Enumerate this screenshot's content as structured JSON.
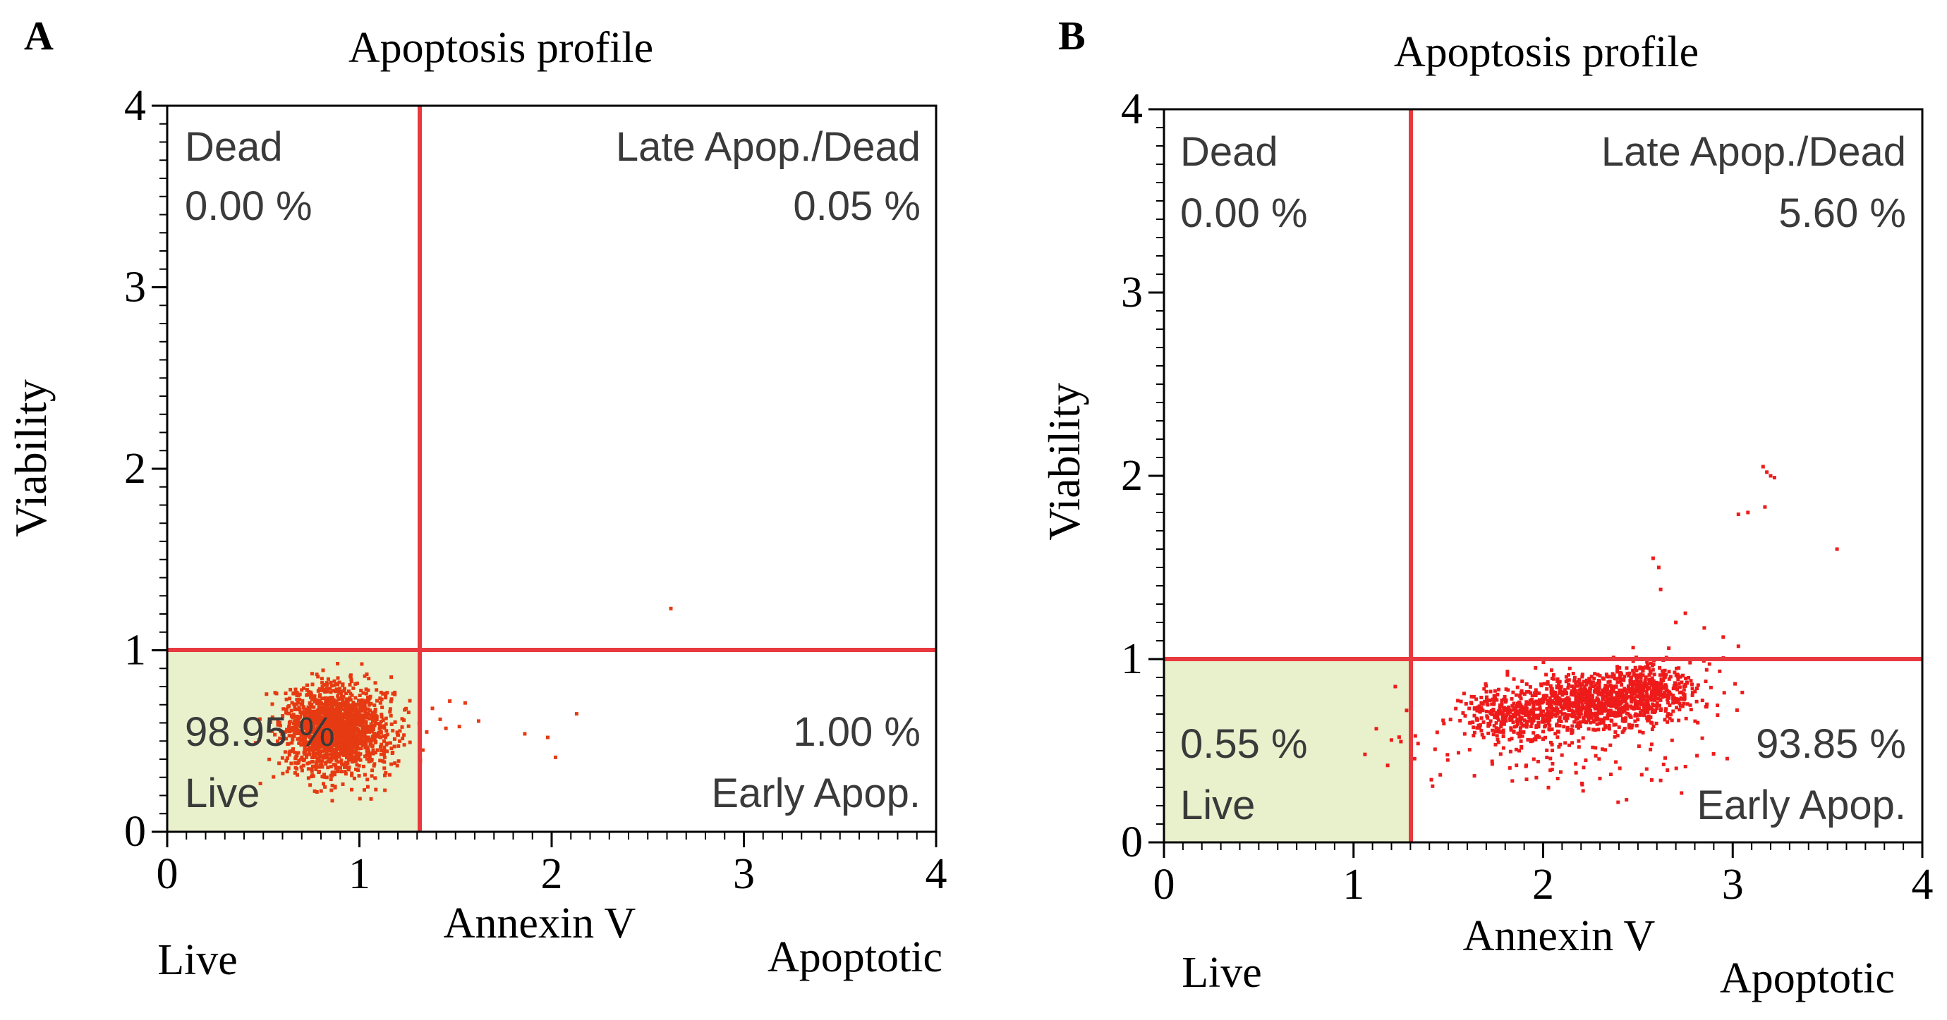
{
  "figure": {
    "panels": [
      "A",
      "B"
    ]
  },
  "colors": {
    "gate_line": "#e8393f",
    "dot_a": "#e63a12",
    "dot_b": "#ee1b1b",
    "live_fill": "#e9f0cc",
    "axis": "#000000",
    "quad_text": "#3a3a3a"
  },
  "chart_data": [
    {
      "type": "scatter",
      "panel_label": "A",
      "title": "Apoptosis profile",
      "xlabel": "Annexin V",
      "ylabel": "Viability",
      "xlim": [
        0,
        4
      ],
      "ylim": [
        0,
        4
      ],
      "x_ticks": [
        "0",
        "1",
        "2",
        "3",
        "4"
      ],
      "y_ticks": [
        "0",
        "1",
        "2",
        "3",
        "4"
      ],
      "x_end_labels": {
        "left": "Live",
        "right": "Apoptotic"
      },
      "gates": {
        "x": 1.3,
        "y": 1.0
      },
      "quadrants": {
        "dead": {
          "name": "Dead",
          "percent": "0.00 %"
        },
        "late": {
          "name": "Late Apop./Dead",
          "percent": "0.05 %"
        },
        "live": {
          "name": "Live",
          "percent": "98.95 %"
        },
        "early": {
          "name": "Early Apop.",
          "percent": "1.00 %"
        }
      },
      "clusters": [
        {
          "center": [
            0.88,
            0.56
          ],
          "spread": [
            0.14,
            0.12
          ],
          "count": 1700
        }
      ],
      "points": [
        [
          2.62,
          1.23
        ],
        [
          1.38,
          0.68
        ],
        [
          1.42,
          0.62
        ],
        [
          1.47,
          0.72
        ],
        [
          1.52,
          0.58
        ],
        [
          1.62,
          0.61
        ],
        [
          1.86,
          0.54
        ],
        [
          1.98,
          0.52
        ],
        [
          2.02,
          0.41
        ],
        [
          2.13,
          0.65
        ],
        [
          1.35,
          0.55
        ],
        [
          1.45,
          0.57
        ],
        [
          1.55,
          0.71
        ],
        [
          1.33,
          0.45
        ]
      ]
    },
    {
      "type": "scatter",
      "panel_label": "B",
      "title": "Apoptosis profile",
      "xlabel": "Annexin V",
      "ylabel": "Viability",
      "xlim": [
        0,
        4
      ],
      "ylim": [
        0,
        4
      ],
      "x_ticks": [
        "0",
        "1",
        "2",
        "3",
        "4"
      ],
      "y_ticks": [
        "0",
        "1",
        "2",
        "3",
        "4"
      ],
      "x_end_labels": {
        "left": "Live",
        "right": "Apoptotic"
      },
      "gates": {
        "x": 1.3,
        "y": 1.0
      },
      "quadrants": {
        "dead": {
          "name": "Dead",
          "percent": "0.00 %"
        },
        "late": {
          "name": "Late Apop./Dead",
          "percent": "5.60 %"
        },
        "live": {
          "name": "Live",
          "percent": "0.55 %"
        },
        "early": {
          "name": "Early Apop.",
          "percent": "93.85 %"
        }
      },
      "clusters": [
        {
          "center": [
            1.85,
            0.7
          ],
          "spread": [
            0.13,
            0.07
          ],
          "count": 320
        },
        {
          "center": [
            2.3,
            0.76
          ],
          "spread": [
            0.2,
            0.07
          ],
          "count": 780
        },
        {
          "center": [
            2.55,
            0.86
          ],
          "spread": [
            0.16,
            0.07
          ],
          "count": 320
        },
        {
          "center": [
            2.05,
            0.52
          ],
          "spread": [
            0.38,
            0.14
          ],
          "count": 150
        }
      ],
      "points": [
        [
          3.16,
          2.05
        ],
        [
          3.18,
          2.02
        ],
        [
          3.2,
          2.0
        ],
        [
          3.22,
          1.99
        ],
        [
          3.17,
          1.83
        ],
        [
          3.03,
          1.79
        ],
        [
          3.08,
          1.8
        ],
        [
          3.55,
          1.6
        ],
        [
          2.58,
          1.55
        ],
        [
          2.61,
          1.5
        ],
        [
          2.62,
          1.38
        ],
        [
          2.7,
          1.2
        ],
        [
          2.75,
          1.25
        ],
        [
          2.85,
          1.17
        ],
        [
          2.95,
          1.12
        ],
        [
          3.03,
          1.07
        ],
        [
          1.28,
          0.72
        ],
        [
          1.25,
          0.55
        ],
        [
          1.12,
          0.62
        ],
        [
          1.06,
          0.48
        ],
        [
          1.22,
          0.85
        ],
        [
          1.18,
          0.42
        ]
      ]
    }
  ]
}
